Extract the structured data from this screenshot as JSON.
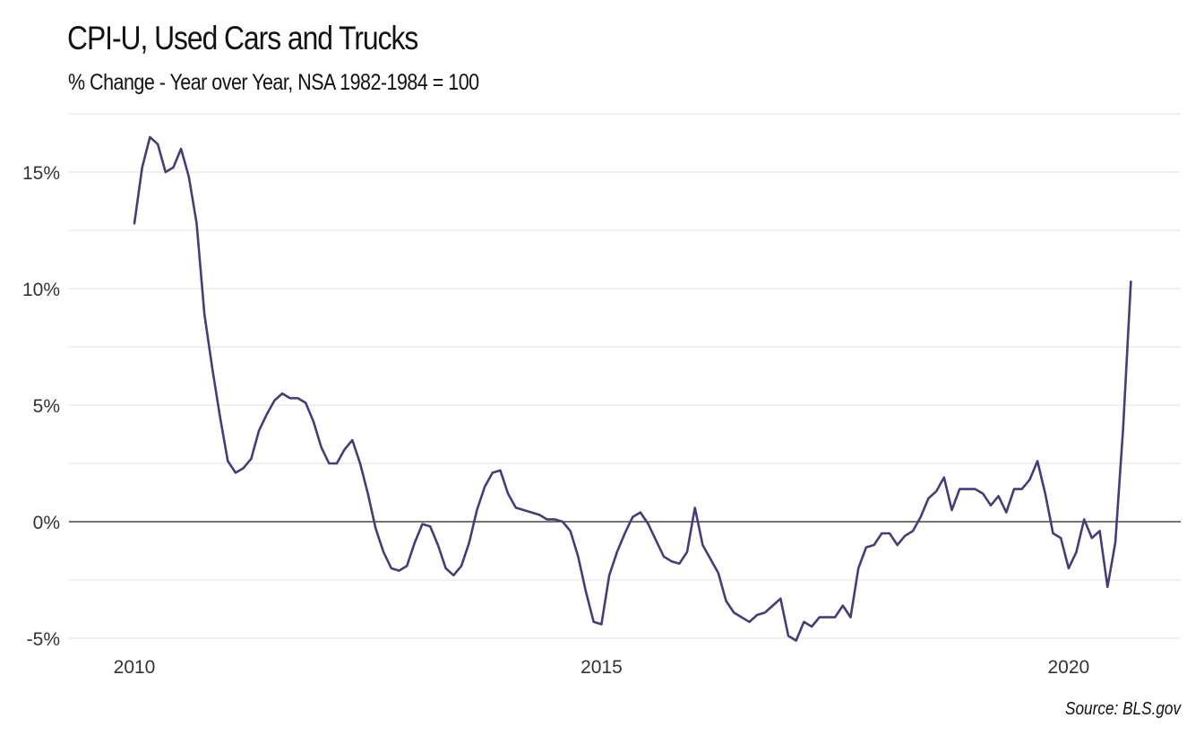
{
  "chart_data": {
    "type": "line",
    "title": "CPI-U, Used Cars and Trucks",
    "subtitle": "% Change - Year over Year, NSA 1982-1984 = 100",
    "source": "Source: BLS.gov",
    "xlabel": "",
    "ylabel": "",
    "x_ticks": [
      {
        "value": 2010,
        "label": "2010"
      },
      {
        "value": 2015,
        "label": "2015"
      },
      {
        "value": 2020,
        "label": "2020"
      }
    ],
    "y_ticks": [
      {
        "value": -5,
        "label": "-5%"
      },
      {
        "value": 0,
        "label": "0%"
      },
      {
        "value": 5,
        "label": "5%"
      },
      {
        "value": 10,
        "label": "10%"
      },
      {
        "value": 15,
        "label": "15%"
      }
    ],
    "xlim": [
      2009.3,
      2021.2
    ],
    "ylim": [
      -5.0,
      17.0
    ],
    "grid": true,
    "line_color": "#463d78",
    "zero_line_color": "#222222",
    "grid_color": "#e2e2e2",
    "series": [
      {
        "start": "2010-01",
        "frequency": "monthly",
        "values": [
          12.8,
          15.2,
          16.5,
          16.2,
          15.0,
          15.2,
          16.0,
          14.8,
          12.8,
          8.9,
          6.6,
          4.5,
          2.6,
          2.1,
          2.3,
          2.7,
          3.9,
          4.6,
          5.2,
          5.5,
          5.3,
          5.3,
          5.1,
          4.3,
          3.2,
          2.5,
          2.5,
          3.1,
          3.5,
          2.5,
          1.2,
          -0.3,
          -1.3,
          -2.0,
          -2.1,
          -1.9,
          -0.9,
          -0.1,
          -0.2,
          -1.0,
          -2.0,
          -2.3,
          -1.9,
          -0.9,
          0.5,
          1.5,
          2.1,
          2.2,
          1.2,
          0.6,
          0.5,
          0.4,
          0.3,
          0.1,
          0.1,
          0.0,
          -0.4,
          -1.5,
          -3.0,
          -4.3,
          -4.4,
          -2.3,
          -1.3,
          -0.5,
          0.2,
          0.4,
          -0.1,
          -0.8,
          -1.5,
          -1.7,
          -1.8,
          -1.3,
          0.6,
          -1.0,
          -1.6,
          -2.2,
          -3.4,
          -3.9,
          -4.1,
          -4.3,
          -4.0,
          -3.9,
          -3.6,
          -3.3,
          -4.9,
          -5.1,
          -4.3,
          -4.5,
          -4.1,
          -4.1,
          -4.1,
          -3.6,
          -4.1,
          -2.0,
          -1.1,
          -1.0,
          -0.5,
          -0.5,
          -1.0,
          -0.6,
          -0.4,
          0.2,
          1.0,
          1.3,
          1.9,
          0.5,
          1.4,
          1.4,
          1.4,
          1.2,
          0.7,
          1.1,
          0.4,
          1.4,
          1.4,
          1.8,
          2.6,
          1.2,
          -0.5,
          -0.7,
          -2.0,
          -1.3,
          0.1,
          -0.7,
          -0.4,
          -2.8,
          -0.9,
          4.0,
          10.3
        ]
      }
    ]
  }
}
